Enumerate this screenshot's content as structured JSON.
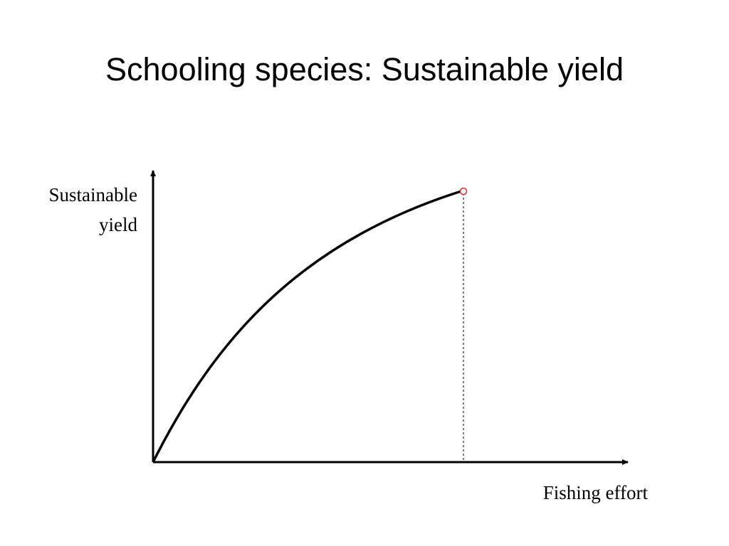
{
  "header": {
    "title": "Schooling species: Sustainable yield"
  },
  "diagram": {
    "y_axis": {
      "label_lines": [
        "Sustainable",
        "yield"
      ]
    },
    "x_axis": {
      "label": "Fishing effort"
    }
  }
}
